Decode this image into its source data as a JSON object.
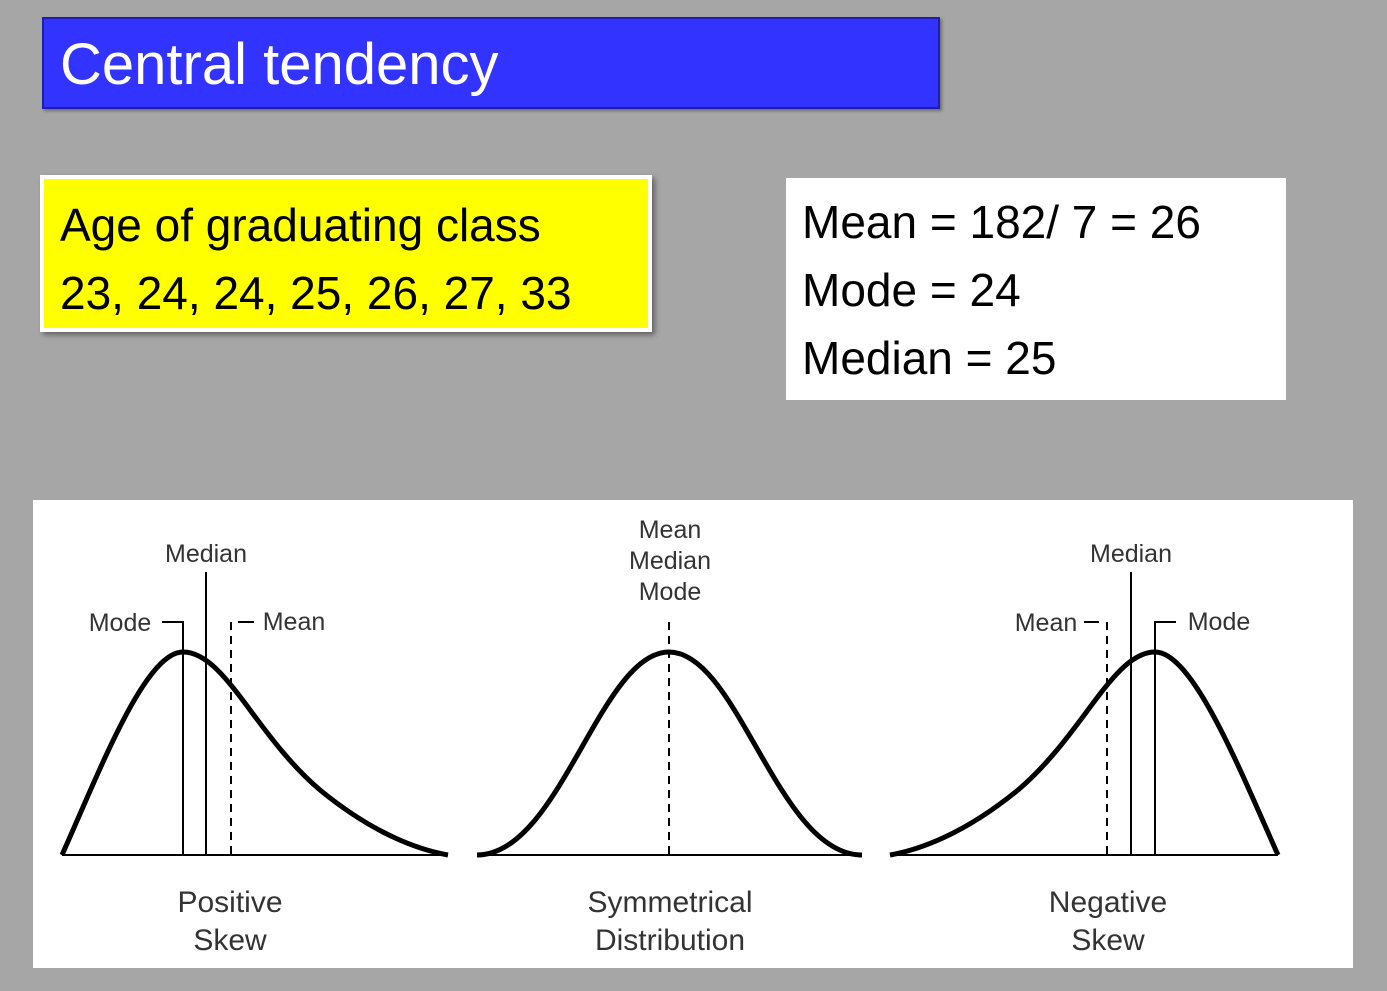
{
  "title": "Central tendency",
  "age_box": {
    "lines": [
      "Age of graduating class",
      "23, 24, 24, 25, 26, 27, 33"
    ]
  },
  "stats_box": {
    "lines": [
      "Mean = 182/ 7 = 26",
      "Mode = 24",
      "Median = 25"
    ]
  },
  "diagram": {
    "panels": [
      {
        "labels": [
          "Median",
          "Mode",
          "Mean"
        ],
        "caption": [
          "Positive",
          "Skew"
        ]
      },
      {
        "labels": [
          "Mean",
          "Median",
          "Mode"
        ],
        "caption": [
          "Symmetrical",
          "Distribution"
        ]
      },
      {
        "labels": [
          "Median",
          "Mean",
          "Mode"
        ],
        "caption": [
          "Negative",
          "Skew"
        ]
      }
    ]
  }
}
